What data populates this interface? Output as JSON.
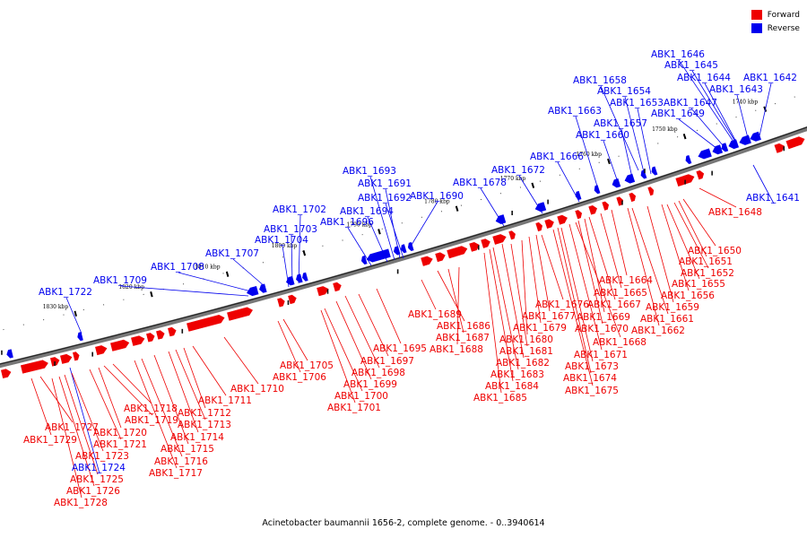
{
  "legend": [
    {
      "label": "Forward",
      "color": "#ee0000"
    },
    {
      "label": "Reverse",
      "color": "#0000ee"
    }
  ],
  "caption": "Acinetobacter baumannii 1656-2, complete genome. - 0..3940614",
  "ticks": [
    "1740 kbp",
    "1750 kbp",
    "1760 kbp",
    "1770 kbp",
    "1780 kbp",
    "1790 kbp",
    "1800 kbp",
    "1810 kbp",
    "1820 kbp",
    "1830 kbp"
  ],
  "forward_genes": [
    "ABK1_1648",
    "ABK1_1650",
    "ABK1_1651",
    "ABK1_1652",
    "ABK1_1655",
    "ABK1_1656",
    "ABK1_1659",
    "ABK1_1661",
    "ABK1_1662",
    "ABK1_1664",
    "ABK1_1665",
    "ABK1_1667",
    "ABK1_1669",
    "ABK1_1670",
    "ABK1_1668",
    "ABK1_1671",
    "ABK1_1673",
    "ABK1_1674",
    "ABK1_1675",
    "ABK1_1676",
    "ABK1_1677",
    "ABK1_1679",
    "ABK1_1680",
    "ABK1_1681",
    "ABK1_1682",
    "ABK1_1683",
    "ABK1_1684",
    "ABK1_1685",
    "ABK1_1689",
    "ABK1_1686",
    "ABK1_1687",
    "ABK1_1688",
    "ABK1_1695",
    "ABK1_1697",
    "ABK1_1698",
    "ABK1_1699",
    "ABK1_1700",
    "ABK1_1701",
    "ABK1_1705",
    "ABK1_1706",
    "ABK1_1710",
    "ABK1_1711",
    "ABK1_1712",
    "ABK1_1713",
    "ABK1_1714",
    "ABK1_1715",
    "ABK1_1716",
    "ABK1_1717",
    "ABK1_1718",
    "ABK1_1719",
    "ABK1_1720",
    "ABK1_1721",
    "ABK1_1723",
    "ABK1_1725",
    "ABK1_1726",
    "ABK1_1727",
    "ABK1_1728",
    "ABK1_1729"
  ],
  "reverse_genes": [
    "ABK1_1646",
    "ABK1_1645",
    "ABK1_1644",
    "ABK1_1642",
    "ABK1_1643",
    "ABK1_1647",
    "ABK1_1649",
    "ABK1_1641",
    "ABK1_1658",
    "ABK1_1654",
    "ABK1_1653",
    "ABK1_1657",
    "ABK1_1663",
    "ABK1_1660",
    "ABK1_1666",
    "ABK1_1672",
    "ABK1_1678",
    "ABK1_1690",
    "ABK1_1693",
    "ABK1_1691",
    "ABK1_1692",
    "ABK1_1694",
    "ABK1_1696",
    "ABK1_1702",
    "ABK1_1703",
    "ABK1_1704",
    "ABK1_1707",
    "ABK1_1708",
    "ABK1_1709",
    "ABK1_1722",
    "ABK1_1724"
  ]
}
